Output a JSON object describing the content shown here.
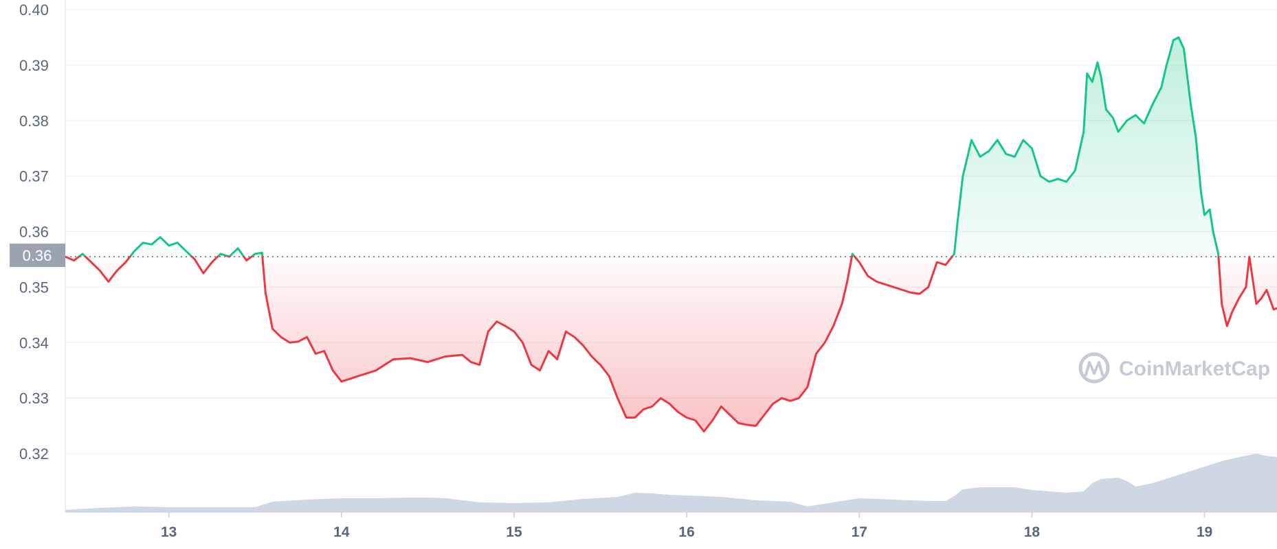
{
  "chart_data": {
    "type": "area",
    "y_ticks": [
      "0.40",
      "0.39",
      "0.38",
      "0.37",
      "0.36",
      "0.35",
      "0.34",
      "0.33",
      "0.32"
    ],
    "x_ticks": [
      "13",
      "14",
      "15",
      "16",
      "17",
      "18",
      "19"
    ],
    "x_range": [
      12.4,
      19.42
    ],
    "y_range": [
      0.3095,
      0.4005
    ],
    "reference_label": "0.36",
    "reference_value": 0.3555,
    "grid": true,
    "colors": {
      "up": "#16c784",
      "down": "#ea3943",
      "volume": "#cfd6e4",
      "grid": "#eff2f5",
      "badge": "#9ba3b1",
      "watermark": "#c4cad6"
    },
    "watermark": "CoinMarketCap",
    "series": [
      {
        "type": "price",
        "points": [
          [
            12.4,
            0.3555
          ],
          [
            12.45,
            0.3548
          ],
          [
            12.5,
            0.356
          ],
          [
            12.55,
            0.3545
          ],
          [
            12.6,
            0.353
          ],
          [
            12.65,
            0.351
          ],
          [
            12.7,
            0.353
          ],
          [
            12.75,
            0.3545
          ],
          [
            12.8,
            0.3565
          ],
          [
            12.85,
            0.358
          ],
          [
            12.9,
            0.3577
          ],
          [
            12.95,
            0.359
          ],
          [
            13.0,
            0.3575
          ],
          [
            13.05,
            0.358
          ],
          [
            13.1,
            0.3565
          ],
          [
            13.15,
            0.355
          ],
          [
            13.2,
            0.3525
          ],
          [
            13.25,
            0.3545
          ],
          [
            13.3,
            0.356
          ],
          [
            13.35,
            0.3555
          ],
          [
            13.4,
            0.357
          ],
          [
            13.45,
            0.3548
          ],
          [
            13.5,
            0.356
          ],
          [
            13.54,
            0.3562
          ],
          [
            13.56,
            0.349
          ],
          [
            13.6,
            0.3425
          ],
          [
            13.65,
            0.341
          ],
          [
            13.7,
            0.34
          ],
          [
            13.75,
            0.3402
          ],
          [
            13.8,
            0.341
          ],
          [
            13.85,
            0.338
          ],
          [
            13.9,
            0.3385
          ],
          [
            13.95,
            0.335
          ],
          [
            14.0,
            0.333
          ],
          [
            14.05,
            0.3335
          ],
          [
            14.1,
            0.334
          ],
          [
            14.2,
            0.335
          ],
          [
            14.3,
            0.337
          ],
          [
            14.4,
            0.3372
          ],
          [
            14.5,
            0.3365
          ],
          [
            14.6,
            0.3375
          ],
          [
            14.7,
            0.3378
          ],
          [
            14.75,
            0.3365
          ],
          [
            14.8,
            0.336
          ],
          [
            14.85,
            0.342
          ],
          [
            14.9,
            0.3438
          ],
          [
            14.95,
            0.343
          ],
          [
            15.0,
            0.342
          ],
          [
            15.05,
            0.34
          ],
          [
            15.1,
            0.336
          ],
          [
            15.15,
            0.335
          ],
          [
            15.2,
            0.3385
          ],
          [
            15.25,
            0.337
          ],
          [
            15.3,
            0.342
          ],
          [
            15.35,
            0.341
          ],
          [
            15.4,
            0.3395
          ],
          [
            15.45,
            0.3375
          ],
          [
            15.5,
            0.336
          ],
          [
            15.55,
            0.334
          ],
          [
            15.6,
            0.33
          ],
          [
            15.65,
            0.3265
          ],
          [
            15.7,
            0.3265
          ],
          [
            15.75,
            0.328
          ],
          [
            15.8,
            0.3285
          ],
          [
            15.85,
            0.33
          ],
          [
            15.9,
            0.329
          ],
          [
            15.95,
            0.3275
          ],
          [
            16.0,
            0.3265
          ],
          [
            16.05,
            0.326
          ],
          [
            16.1,
            0.324
          ],
          [
            16.15,
            0.326
          ],
          [
            16.2,
            0.3285
          ],
          [
            16.25,
            0.327
          ],
          [
            16.3,
            0.3255
          ],
          [
            16.35,
            0.3252
          ],
          [
            16.4,
            0.325
          ],
          [
            16.45,
            0.327
          ],
          [
            16.5,
            0.329
          ],
          [
            16.55,
            0.33
          ],
          [
            16.6,
            0.3295
          ],
          [
            16.65,
            0.33
          ],
          [
            16.7,
            0.332
          ],
          [
            16.75,
            0.338
          ],
          [
            16.8,
            0.34
          ],
          [
            16.85,
            0.343
          ],
          [
            16.9,
            0.347
          ],
          [
            16.93,
            0.351
          ],
          [
            16.96,
            0.356
          ],
          [
            17.0,
            0.3545
          ],
          [
            17.05,
            0.352
          ],
          [
            17.1,
            0.351
          ],
          [
            17.15,
            0.3505
          ],
          [
            17.2,
            0.35
          ],
          [
            17.25,
            0.3495
          ],
          [
            17.3,
            0.349
          ],
          [
            17.35,
            0.3488
          ],
          [
            17.4,
            0.35
          ],
          [
            17.45,
            0.3545
          ],
          [
            17.5,
            0.354
          ],
          [
            17.55,
            0.356
          ],
          [
            17.57,
            0.362
          ],
          [
            17.6,
            0.37
          ],
          [
            17.65,
            0.3765
          ],
          [
            17.7,
            0.3735
          ],
          [
            17.75,
            0.3745
          ],
          [
            17.8,
            0.3765
          ],
          [
            17.85,
            0.374
          ],
          [
            17.9,
            0.3735
          ],
          [
            17.95,
            0.3765
          ],
          [
            18.0,
            0.375
          ],
          [
            18.05,
            0.37
          ],
          [
            18.1,
            0.369
          ],
          [
            18.15,
            0.3695
          ],
          [
            18.2,
            0.369
          ],
          [
            18.25,
            0.371
          ],
          [
            18.3,
            0.378
          ],
          [
            18.32,
            0.3885
          ],
          [
            18.35,
            0.387
          ],
          [
            18.38,
            0.3905
          ],
          [
            18.4,
            0.388
          ],
          [
            18.43,
            0.382
          ],
          [
            18.47,
            0.3805
          ],
          [
            18.5,
            0.378
          ],
          [
            18.55,
            0.38
          ],
          [
            18.6,
            0.381
          ],
          [
            18.65,
            0.3795
          ],
          [
            18.7,
            0.383
          ],
          [
            18.75,
            0.386
          ],
          [
            18.78,
            0.39
          ],
          [
            18.82,
            0.3945
          ],
          [
            18.85,
            0.395
          ],
          [
            18.88,
            0.393
          ],
          [
            18.92,
            0.383
          ],
          [
            18.95,
            0.377
          ],
          [
            18.98,
            0.367
          ],
          [
            19.0,
            0.363
          ],
          [
            19.03,
            0.364
          ],
          [
            19.05,
            0.36
          ],
          [
            19.08,
            0.356
          ],
          [
            19.1,
            0.347
          ],
          [
            19.13,
            0.343
          ],
          [
            19.16,
            0.3455
          ],
          [
            19.2,
            0.348
          ],
          [
            19.24,
            0.35
          ],
          [
            19.26,
            0.3555
          ],
          [
            19.3,
            0.347
          ],
          [
            19.33,
            0.348
          ],
          [
            19.36,
            0.3495
          ],
          [
            19.4,
            0.346
          ],
          [
            19.42,
            0.3462
          ]
        ]
      },
      {
        "type": "volume",
        "points": [
          [
            12.4,
            0.03
          ],
          [
            12.6,
            0.06
          ],
          [
            12.8,
            0.08
          ],
          [
            13.0,
            0.07
          ],
          [
            13.2,
            0.07
          ],
          [
            13.4,
            0.07
          ],
          [
            13.5,
            0.07
          ],
          [
            13.6,
            0.15
          ],
          [
            13.8,
            0.18
          ],
          [
            14.0,
            0.2
          ],
          [
            14.2,
            0.2
          ],
          [
            14.4,
            0.21
          ],
          [
            14.5,
            0.21
          ],
          [
            14.6,
            0.2
          ],
          [
            14.8,
            0.14
          ],
          [
            15.0,
            0.13
          ],
          [
            15.2,
            0.14
          ],
          [
            15.4,
            0.19
          ],
          [
            15.6,
            0.22
          ],
          [
            15.7,
            0.28
          ],
          [
            15.8,
            0.27
          ],
          [
            15.9,
            0.25
          ],
          [
            16.0,
            0.24
          ],
          [
            16.2,
            0.22
          ],
          [
            16.4,
            0.17
          ],
          [
            16.6,
            0.15
          ],
          [
            16.7,
            0.08
          ],
          [
            16.8,
            0.12
          ],
          [
            16.9,
            0.16
          ],
          [
            17.0,
            0.2
          ],
          [
            17.2,
            0.18
          ],
          [
            17.4,
            0.16
          ],
          [
            17.5,
            0.16
          ],
          [
            17.55,
            0.23
          ],
          [
            17.6,
            0.33
          ],
          [
            17.7,
            0.36
          ],
          [
            17.9,
            0.36
          ],
          [
            18.0,
            0.32
          ],
          [
            18.2,
            0.28
          ],
          [
            18.3,
            0.3
          ],
          [
            18.35,
            0.42
          ],
          [
            18.4,
            0.48
          ],
          [
            18.5,
            0.5
          ],
          [
            18.55,
            0.45
          ],
          [
            18.6,
            0.37
          ],
          [
            18.7,
            0.42
          ],
          [
            18.8,
            0.5
          ],
          [
            18.9,
            0.58
          ],
          [
            19.0,
            0.66
          ],
          [
            19.1,
            0.74
          ],
          [
            19.2,
            0.8
          ],
          [
            19.3,
            0.85
          ],
          [
            19.35,
            0.82
          ],
          [
            19.42,
            0.8
          ]
        ]
      }
    ]
  }
}
